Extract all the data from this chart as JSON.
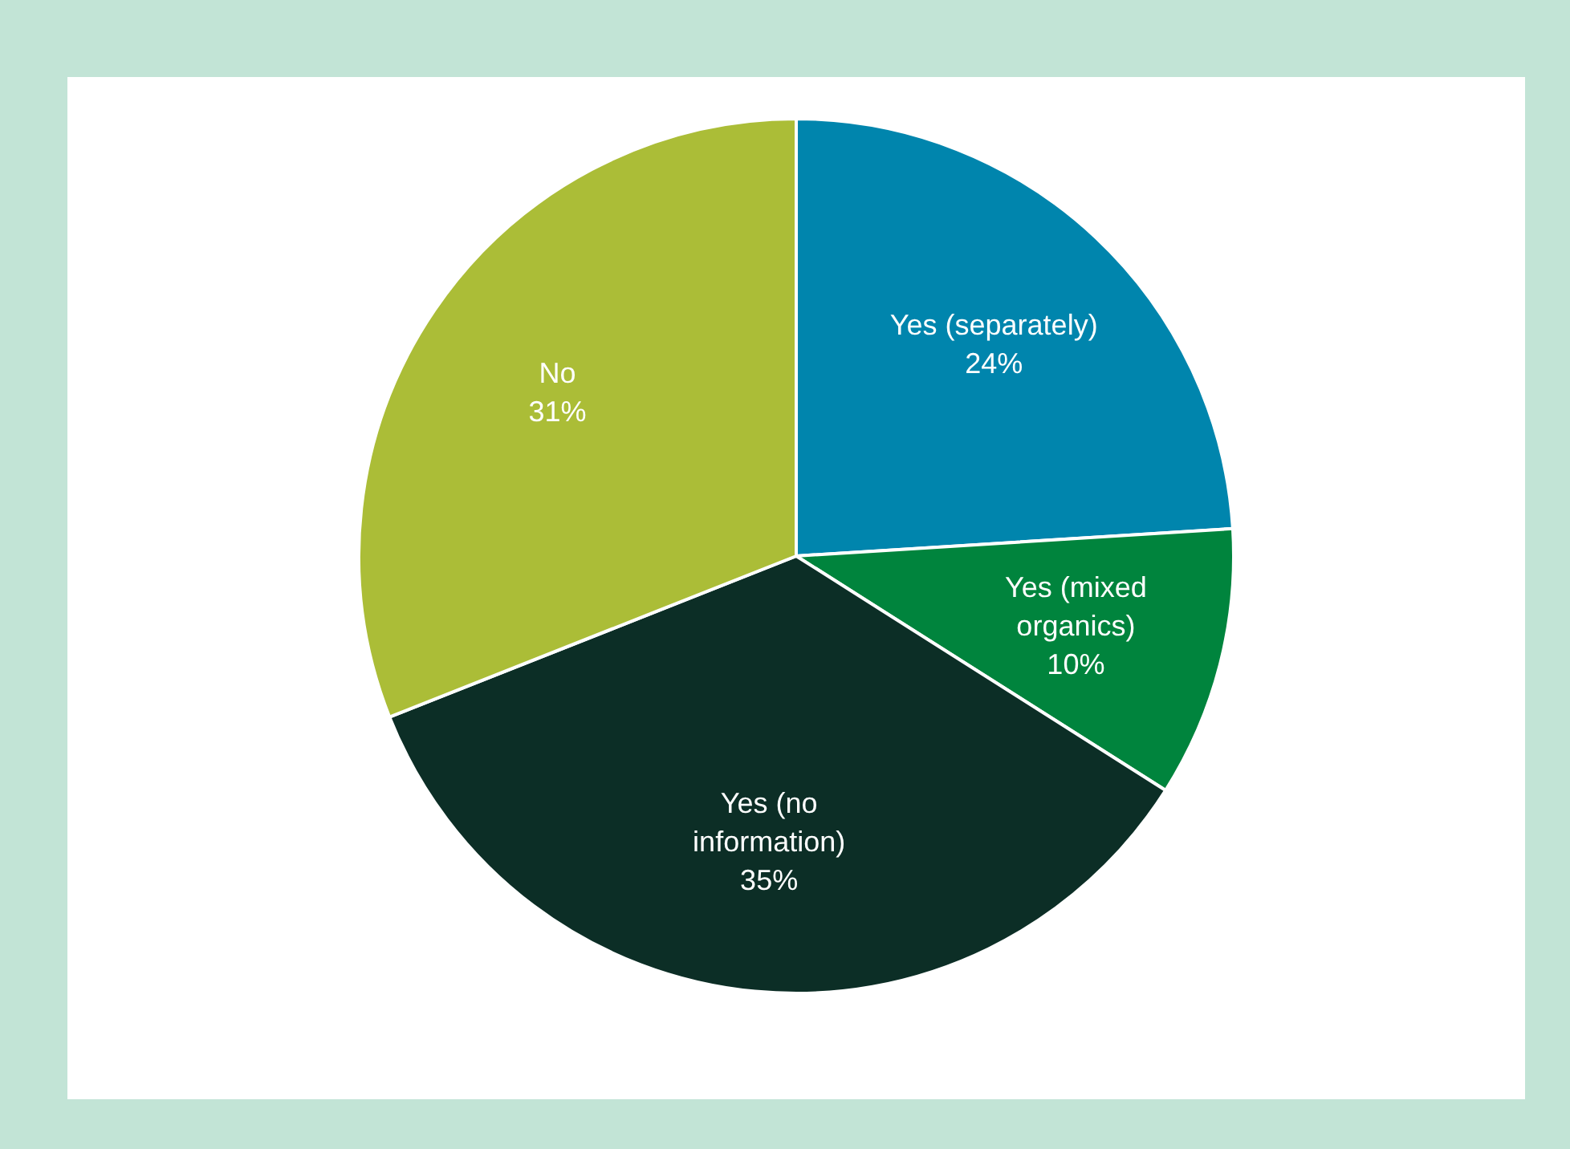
{
  "chart_data": {
    "type": "pie",
    "categories": [
      "Yes (separately)",
      "Yes (mixed organics)",
      "Yes (no information)",
      "No"
    ],
    "values": [
      24,
      10,
      35,
      31
    ],
    "colors": [
      "#0085ad",
      "#00843d",
      "#0c2e26",
      "#abbd37"
    ],
    "value_labels": [
      "24%",
      "10%",
      "35%",
      "31%"
    ]
  }
}
